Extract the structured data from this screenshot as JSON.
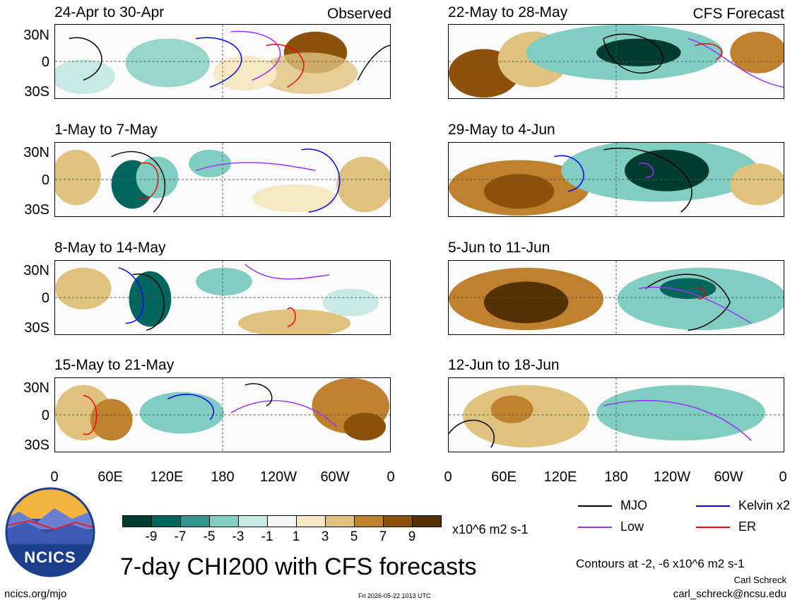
{
  "panels": [
    {
      "title": "24-Apr to 30-Apr",
      "tag": "Observed"
    },
    {
      "title": "1-May to 7-May",
      "tag": ""
    },
    {
      "title": "8-May to 14-May",
      "tag": ""
    },
    {
      "title": "15-May to 21-May",
      "tag": ""
    },
    {
      "title": "22-May to 28-May",
      "tag": "CFS Forecast"
    },
    {
      "title": "29-May to 4-Jun",
      "tag": ""
    },
    {
      "title": "5-Jun to 11-Jun",
      "tag": ""
    },
    {
      "title": "12-Jun to 18-Jun",
      "tag": ""
    }
  ],
  "lat_labels": [
    "30N",
    "0",
    "30S"
  ],
  "lon_labels": [
    "0",
    "60E",
    "120E",
    "180",
    "120W",
    "60W",
    "0"
  ],
  "colorbar": {
    "labels": [
      "-9",
      "-7",
      "-5",
      "-3",
      "-1",
      "1",
      "3",
      "5",
      "7",
      "9"
    ],
    "colors": [
      "#003c30",
      "#01665e",
      "#35978f",
      "#80cdc1",
      "#c7eae5",
      "#f5f5f5",
      "#f6e8c3",
      "#dfc27d",
      "#bf812d",
      "#8c510a",
      "#543005"
    ],
    "units": "x10^6 m2 s-1"
  },
  "legend": [
    {
      "label": "MJO",
      "color": "#000000"
    },
    {
      "label": "Kelvin x2",
      "color": "#0000ff"
    },
    {
      "label": "Low",
      "color": "#9b30ff"
    },
    {
      "label": "ER",
      "color": "#ff0000"
    }
  ],
  "title": "7-day CHI200 with CFS forecasts",
  "contours_note": "Contours at -2, -6 x10^6 m2 s-1",
  "author": "Carl Schreck",
  "email": "carl_schreck@ncsu.edu",
  "url": "ncics.org/mjo",
  "timestamp": "Fri 2026-05-22 1013 UTC",
  "logo_text": "NCICS"
}
